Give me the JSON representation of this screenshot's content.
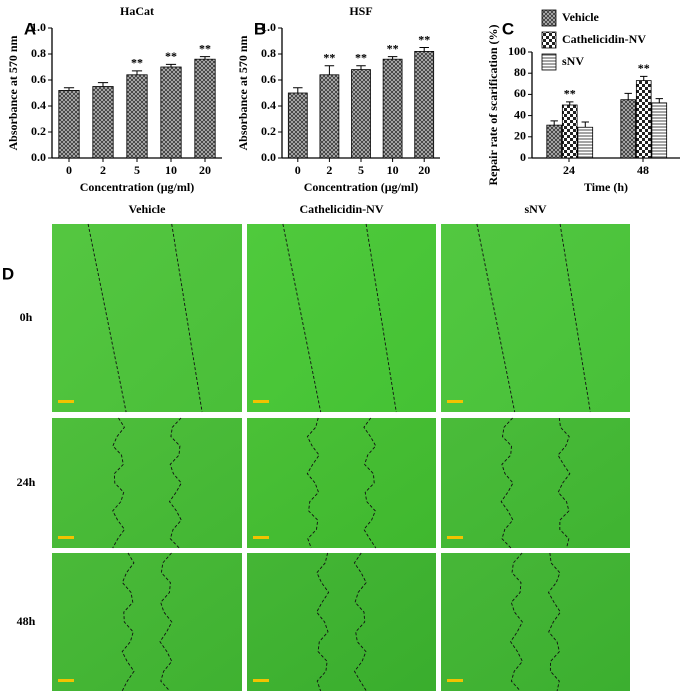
{
  "chart_data": [
    {
      "type": "bar",
      "panel": "A",
      "title": "HaCat",
      "y_label": "Absorbance at 570 nm",
      "x_label": "Concentration (μg/ml)",
      "categories": [
        "0",
        "2",
        "5",
        "10",
        "20"
      ],
      "values": [
        0.52,
        0.55,
        0.64,
        0.7,
        0.76
      ],
      "errors": [
        0.02,
        0.03,
        0.03,
        0.02,
        0.02
      ],
      "annotations": [
        null,
        null,
        "**",
        "**",
        "**"
      ],
      "pattern": "crosshatch",
      "ylim": [
        0,
        1
      ],
      "yticks": [
        {
          "value": 0,
          "label": "0.0"
        },
        0.2,
        0.4,
        0.6,
        0.8,
        {
          "value": 1,
          "label": "1.0"
        }
      ]
    },
    {
      "type": "bar",
      "panel": "B",
      "title": "HSF",
      "y_label": "Absorbance at 570 nm",
      "x_label": "Concentration (μg/ml)",
      "categories": [
        "0",
        "2",
        "5",
        "10",
        "20"
      ],
      "values": [
        0.5,
        0.64,
        0.68,
        0.76,
        0.82
      ],
      "errors": [
        0.04,
        0.07,
        0.03,
        0.02,
        0.03
      ],
      "annotations": [
        null,
        "**",
        "**",
        "**",
        "**"
      ],
      "pattern": "crosshatch",
      "ylim": [
        0,
        1
      ],
      "yticks": [
        {
          "value": 0,
          "label": "0.0"
        },
        0.2,
        0.4,
        0.6,
        0.8,
        {
          "value": 1,
          "label": "1.0"
        }
      ]
    },
    {
      "type": "bar",
      "panel": "C",
      "y_label": "Repair rate of scarification (%)",
      "x_label": "Time (h)",
      "categories": [
        "24",
        "48"
      ],
      "series": [
        {
          "name": "Vehicle",
          "pattern": "crosshatch",
          "values": [
            31,
            55
          ],
          "errors": [
            4,
            6
          ],
          "annotations": [
            null,
            null
          ]
        },
        {
          "name": "Cathelicidin-NV",
          "pattern": "check",
          "values": [
            50,
            73
          ],
          "errors": [
            3,
            4
          ],
          "annotations": [
            "**",
            "**"
          ]
        },
        {
          "name": "sNV",
          "pattern": "hlines",
          "values": [
            29,
            52
          ],
          "errors": [
            5,
            4
          ],
          "annotations": [
            null,
            null
          ]
        }
      ],
      "ylim": [
        0,
        100
      ],
      "yticks": [
        0,
        20,
        40,
        60,
        80,
        100
      ],
      "legend": "top"
    }
  ],
  "panel_d": {
    "label": "D",
    "columns": [
      "Vehicle",
      "Cathelicidin-NV",
      "sNV"
    ],
    "rows": [
      "0h",
      "24h",
      "48h"
    ]
  }
}
